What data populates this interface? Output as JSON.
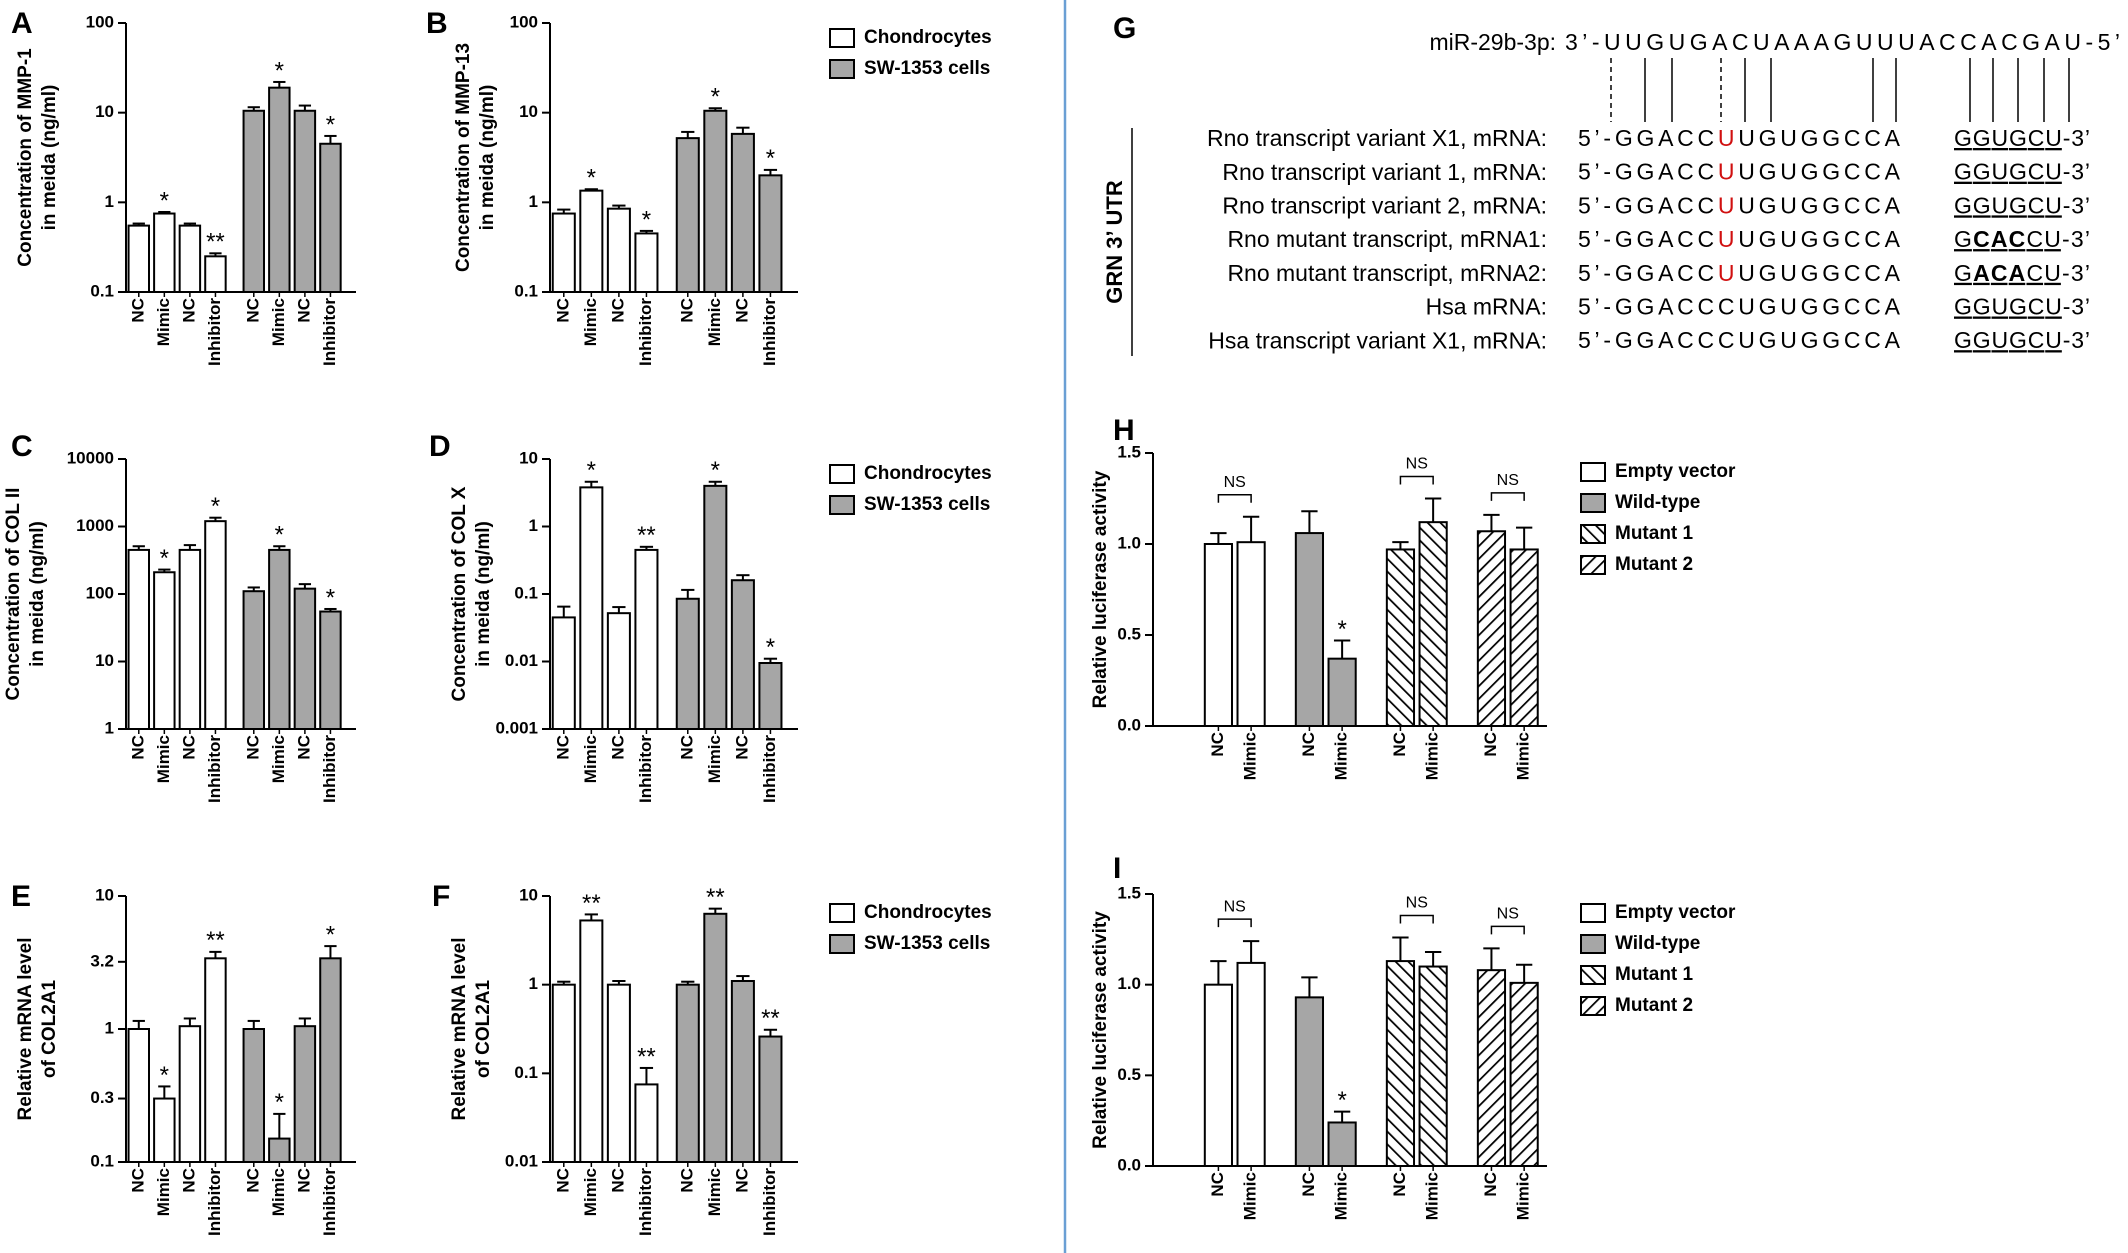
{
  "chart_data": [
    {
      "type": "bar",
      "panel": "A",
      "ylabel": [
        "Concentration of MMP-1",
        "in meida (ng/ml)"
      ],
      "log_scale": true,
      "ylim": [
        0.1,
        100
      ],
      "yticks": [
        0.1,
        1,
        10,
        100
      ],
      "categories": [
        "NC",
        "Mimic",
        "NC",
        "Inhibitor",
        "NC",
        "Mimic",
        "NC",
        "Inhibitor"
      ],
      "series": [
        {
          "color": "#ffffff",
          "values": [
            0.55,
            0.75,
            0.55,
            0.25,
            null,
            null,
            null,
            null
          ],
          "errors": [
            0.03,
            0.03,
            0.03,
            0.02,
            null,
            null,
            null,
            null
          ],
          "annotations": [
            null,
            "*",
            null,
            "**",
            null,
            null,
            null,
            null
          ]
        },
        {
          "color": "#a6a6a6",
          "values": [
            null,
            null,
            null,
            null,
            10.5,
            19,
            10.5,
            4.5
          ],
          "errors": [
            null,
            null,
            null,
            null,
            1,
            3,
            1.5,
            1
          ],
          "annotations": [
            null,
            null,
            null,
            null,
            null,
            "*",
            null,
            "*"
          ]
        }
      ]
    },
    {
      "type": "bar",
      "panel": "B",
      "ylabel": [
        "Concentration of MMP-13",
        "in meida (ng/ml)"
      ],
      "log_scale": true,
      "legend": "right",
      "ylim": [
        0.1,
        100
      ],
      "yticks": [
        0.1,
        1,
        10,
        100
      ],
      "categories": [
        "NC",
        "Mimic",
        "NC",
        "Inhibitor",
        "NC",
        "Mimic",
        "NC",
        "Inhibitor"
      ],
      "series": [
        {
          "name": "Chondrocytes",
          "color": "#ffffff",
          "values": [
            0.75,
            1.35,
            0.85,
            0.45,
            null,
            null,
            null,
            null
          ],
          "errors": [
            0.08,
            0.05,
            0.07,
            0.03,
            null,
            null,
            null,
            null
          ],
          "annotations": [
            null,
            "*",
            null,
            "*",
            null,
            null,
            null,
            null
          ]
        },
        {
          "name": "SW-1353 cells",
          "color": "#a6a6a6",
          "values": [
            null,
            null,
            null,
            null,
            5.2,
            10.5,
            5.8,
            2.0
          ],
          "errors": [
            null,
            null,
            null,
            null,
            0.9,
            0.7,
            1.0,
            0.3
          ],
          "annotations": [
            null,
            null,
            null,
            null,
            null,
            "*",
            null,
            "*"
          ]
        }
      ]
    },
    {
      "type": "bar",
      "panel": "C",
      "ylabel": [
        "Concentration of COL II",
        "in meida (ng/ml)"
      ],
      "log_scale": true,
      "ylim": [
        1,
        10000
      ],
      "yticks": [
        1,
        10,
        100,
        1000,
        10000
      ],
      "categories": [
        "NC",
        "Mimic",
        "NC",
        "Inhibitor",
        "NC",
        "Mimic",
        "NC",
        "Inhibitor"
      ],
      "series": [
        {
          "color": "#ffffff",
          "values": [
            450,
            210,
            450,
            1200,
            null,
            null,
            null,
            null
          ],
          "errors": [
            60,
            20,
            80,
            150,
            null,
            null,
            null,
            null
          ],
          "annotations": [
            null,
            "*",
            null,
            "*",
            null,
            null,
            null,
            null
          ]
        },
        {
          "color": "#a6a6a6",
          "values": [
            null,
            null,
            null,
            null,
            110,
            450,
            120,
            55
          ],
          "errors": [
            null,
            null,
            null,
            null,
            15,
            60,
            20,
            5
          ],
          "annotations": [
            null,
            null,
            null,
            null,
            null,
            "*",
            null,
            "*"
          ]
        }
      ]
    },
    {
      "type": "bar",
      "panel": "D",
      "ylabel": [
        "Concentration of COL X",
        "in meida (ng/ml)"
      ],
      "log_scale": true,
      "legend": "right",
      "ylim": [
        0.001,
        10
      ],
      "yticks": [
        0.001,
        0.01,
        0.1,
        1,
        10
      ],
      "categories": [
        "NC",
        "Mimic",
        "NC",
        "Inhibitor",
        "NC",
        "Mimic",
        "NC",
        "Inhibitor"
      ],
      "series": [
        {
          "name": "Chondrocytes",
          "color": "#ffffff",
          "values": [
            0.045,
            3.8,
            0.052,
            0.45,
            null,
            null,
            null,
            null
          ],
          "errors": [
            0.02,
            0.8,
            0.012,
            0.05,
            null,
            null,
            null,
            null
          ],
          "annotations": [
            null,
            "*",
            null,
            "**",
            null,
            null,
            null,
            null
          ]
        },
        {
          "name": "SW-1353 cells",
          "color": "#a6a6a6",
          "values": [
            null,
            null,
            null,
            null,
            0.085,
            4,
            0.16,
            0.0095
          ],
          "errors": [
            null,
            null,
            null,
            null,
            0.03,
            0.6,
            0.03,
            0.0015
          ],
          "annotations": [
            null,
            null,
            null,
            null,
            null,
            "*",
            null,
            "*"
          ]
        }
      ]
    },
    {
      "type": "bar",
      "panel": "E",
      "ylabel": [
        "Relative mRNA level",
        "of COL2A1"
      ],
      "log_scale": true,
      "ylim": [
        0.1,
        10
      ],
      "yticks": [
        0.1,
        0.3,
        1,
        3.2,
        10
      ],
      "categories": [
        "NC",
        "Mimic",
        "NC",
        "Inhibitor",
        "NC",
        "Mimic",
        "NC",
        "Inhibitor"
      ],
      "series": [
        {
          "color": "#ffffff",
          "values": [
            1.0,
            0.3,
            1.05,
            3.4,
            null,
            null,
            null,
            null
          ],
          "errors": [
            0.15,
            0.07,
            0.15,
            0.4,
            null,
            null,
            null,
            null
          ],
          "annotations": [
            null,
            "*",
            null,
            "**",
            null,
            null,
            null,
            null
          ]
        },
        {
          "color": "#a6a6a6",
          "values": [
            null,
            null,
            null,
            null,
            1.0,
            0.15,
            1.05,
            3.4
          ],
          "errors": [
            null,
            null,
            null,
            null,
            0.15,
            0.08,
            0.15,
            0.8
          ],
          "annotations": [
            null,
            null,
            null,
            null,
            null,
            "*",
            null,
            "*"
          ]
        }
      ]
    },
    {
      "type": "bar",
      "panel": "F",
      "ylabel": [
        "Relative mRNA level",
        "of COL2A1"
      ],
      "log_scale": true,
      "legend": "right",
      "ylim": [
        0.01,
        10
      ],
      "yticks": [
        0.01,
        0.1,
        1,
        10
      ],
      "categories": [
        "NC",
        "Mimic",
        "NC",
        "Inhibitor",
        "NC",
        "Mimic",
        "NC",
        "Inhibitor"
      ],
      "series": [
        {
          "name": "Chondrocytes",
          "color": "#ffffff",
          "values": [
            1.0,
            5.3,
            1.0,
            0.075,
            null,
            null,
            null,
            null
          ],
          "errors": [
            0.08,
            0.9,
            0.1,
            0.04,
            null,
            null,
            null,
            null
          ],
          "annotations": [
            null,
            "**",
            null,
            "**",
            null,
            null,
            null,
            null
          ]
        },
        {
          "name": "SW-1353 cells",
          "color": "#a6a6a6",
          "values": [
            null,
            null,
            null,
            null,
            1.0,
            6.3,
            1.1,
            0.26
          ],
          "errors": [
            null,
            null,
            null,
            null,
            0.08,
            0.9,
            0.15,
            0.05
          ],
          "annotations": [
            null,
            null,
            null,
            null,
            null,
            "**",
            null,
            "**"
          ]
        }
      ]
    },
    {
      "type": "bar",
      "panel": "H",
      "ylabel": [
        "Relative luciferase activity"
      ],
      "legend": "right",
      "ylim": [
        0,
        1.5
      ],
      "yticks": [
        {
          "value": 0,
          "label": "0.0"
        },
        0.5,
        {
          "value": 1,
          "label": "1.0"
        },
        1.5
      ],
      "categories": [
        "NC",
        "Mimic",
        "NC",
        "Mimic",
        "NC",
        "Mimic",
        "NC",
        "Mimic"
      ],
      "series": [
        {
          "name": "Empty vector",
          "color": "#ffffff",
          "values": [
            1.0,
            1.01,
            null,
            null,
            null,
            null,
            null,
            null
          ],
          "errors": [
            0.06,
            0.14,
            null,
            null,
            null,
            null,
            null,
            null
          ],
          "bracket": "NS"
        },
        {
          "name": "Wild-type",
          "color": "#a6a6a6",
          "values": [
            null,
            null,
            1.06,
            0.37,
            null,
            null,
            null,
            null
          ],
          "errors": [
            null,
            null,
            0.12,
            0.1,
            null,
            null,
            null,
            null
          ],
          "annotations": [
            null,
            null,
            null,
            "*",
            null,
            null,
            null,
            null
          ]
        },
        {
          "name": "Mutant 1",
          "color": "#ffffff",
          "pattern": "hatch-back",
          "values": [
            null,
            null,
            null,
            null,
            0.97,
            1.12,
            null,
            null
          ],
          "errors": [
            null,
            null,
            null,
            null,
            0.04,
            0.13,
            null,
            null
          ],
          "bracket": "NS"
        },
        {
          "name": "Mutant 2",
          "color": "#ffffff",
          "pattern": "hatch-forward",
          "values": [
            null,
            null,
            null,
            null,
            null,
            null,
            1.07,
            0.97
          ],
          "errors": [
            null,
            null,
            null,
            null,
            null,
            null,
            0.09,
            0.12
          ],
          "bracket": "NS"
        }
      ]
    },
    {
      "type": "bar",
      "panel": "I",
      "ylabel": [
        "Relative luciferase activity"
      ],
      "legend": "right",
      "ylim": [
        0,
        1.5
      ],
      "yticks": [
        {
          "value": 0,
          "label": "0.0"
        },
        0.5,
        {
          "value": 1,
          "label": "1.0"
        },
        1.5
      ],
      "categories": [
        "NC",
        "Mimic",
        "NC",
        "Mimic",
        "NC",
        "Mimic",
        "NC",
        "Mimic"
      ],
      "series": [
        {
          "name": "Empty vector",
          "color": "#ffffff",
          "values": [
            1.0,
            1.12,
            null,
            null,
            null,
            null,
            null,
            null
          ],
          "errors": [
            0.13,
            0.12,
            null,
            null,
            null,
            null,
            null,
            null
          ],
          "bracket": "NS"
        },
        {
          "name": "Wild-type",
          "color": "#a6a6a6",
          "values": [
            null,
            null,
            0.93,
            0.24,
            null,
            null,
            null,
            null
          ],
          "errors": [
            null,
            null,
            0.11,
            0.06,
            null,
            null,
            null,
            null
          ],
          "annotations": [
            null,
            null,
            null,
            "*",
            null,
            null,
            null,
            null
          ]
        },
        {
          "name": "Mutant 1",
          "color": "#ffffff",
          "pattern": "hatch-back",
          "values": [
            null,
            null,
            null,
            null,
            1.13,
            1.1,
            null,
            null
          ],
          "errors": [
            null,
            null,
            null,
            null,
            0.13,
            0.08,
            null,
            null
          ],
          "bracket": "NS"
        },
        {
          "name": "Mutant 2",
          "color": "#ffffff",
          "pattern": "hatch-forward",
          "values": [
            null,
            null,
            null,
            null,
            null,
            null,
            1.08,
            1.01
          ],
          "errors": [
            null,
            null,
            null,
            null,
            null,
            null,
            0.12,
            0.1
          ],
          "bracket": "NS"
        }
      ]
    }
  ],
  "sequence_panel": {
    "panel": "G",
    "mirna_label": "miR-29b-3p:",
    "mirna_seq": "3’-UUGUGACUAAAGUUUACCACGAU-5’",
    "utr_label": "GRN 3’ UTR",
    "rows": [
      {
        "name": "Rno transcript variant X1, mRNA:",
        "seq": [
          {
            "text": "5’-GGACC"
          },
          {
            "text": "U",
            "red": true
          },
          {
            "text": "UGUGGCCA"
          }
        ],
        "site": [
          {
            "text": "GGUGCU",
            "underline": true
          },
          {
            "text": "-3’"
          }
        ]
      },
      {
        "name": "Rno transcript variant 1, mRNA:",
        "seq": [
          {
            "text": "5’-GGACC"
          },
          {
            "text": "U",
            "red": true
          },
          {
            "text": "UGUGGCCA"
          }
        ],
        "site": [
          {
            "text": "GGUGCU",
            "underline": true
          },
          {
            "text": "-3’"
          }
        ]
      },
      {
        "name": "Rno transcript variant 2, mRNA:",
        "seq": [
          {
            "text": "5’-GGACC"
          },
          {
            "text": "U",
            "red": true
          },
          {
            "text": "UGUGGCCA"
          }
        ],
        "site": [
          {
            "text": "GGUGCU",
            "underline": true
          },
          {
            "text": "-3’"
          }
        ]
      },
      {
        "name": "Rno mutant transcript, mRNA1:",
        "seq": [
          {
            "text": "5’-GGACC"
          },
          {
            "text": "U",
            "red": true
          },
          {
            "text": "UGUGGCCA"
          }
        ],
        "site": [
          {
            "text": "G",
            "underline": true
          },
          {
            "text": "CAC",
            "underline": true,
            "bold": true
          },
          {
            "text": "CU",
            "underline": true
          },
          {
            "text": "-3’"
          }
        ]
      },
      {
        "name": "Rno mutant transcript, mRNA2:",
        "seq": [
          {
            "text": "5’-GGACC"
          },
          {
            "text": "U",
            "red": true
          },
          {
            "text": "UGUGGCCA"
          }
        ],
        "site": [
          {
            "text": "G",
            "underline": true
          },
          {
            "text": "ACA",
            "underline": true,
            "bold": true
          },
          {
            "text": "CU",
            "underline": true
          },
          {
            "text": "-3’"
          }
        ]
      },
      {
        "name": "Hsa mRNA:",
        "seq": [
          {
            "text": "5’-GGACCCUGUGGCCA"
          }
        ],
        "site": [
          {
            "text": "GGUGCU",
            "underline": true
          },
          {
            "text": "-3’"
          }
        ]
      },
      {
        "name": "Hsa transcript variant X1, mRNA:",
        "seq": [
          {
            "text": "5’-GGACCCUGUGGCCA"
          }
        ],
        "site": [
          {
            "text": "GGUGCU",
            "underline": true
          },
          {
            "text": "-3’"
          }
        ]
      }
    ]
  }
}
